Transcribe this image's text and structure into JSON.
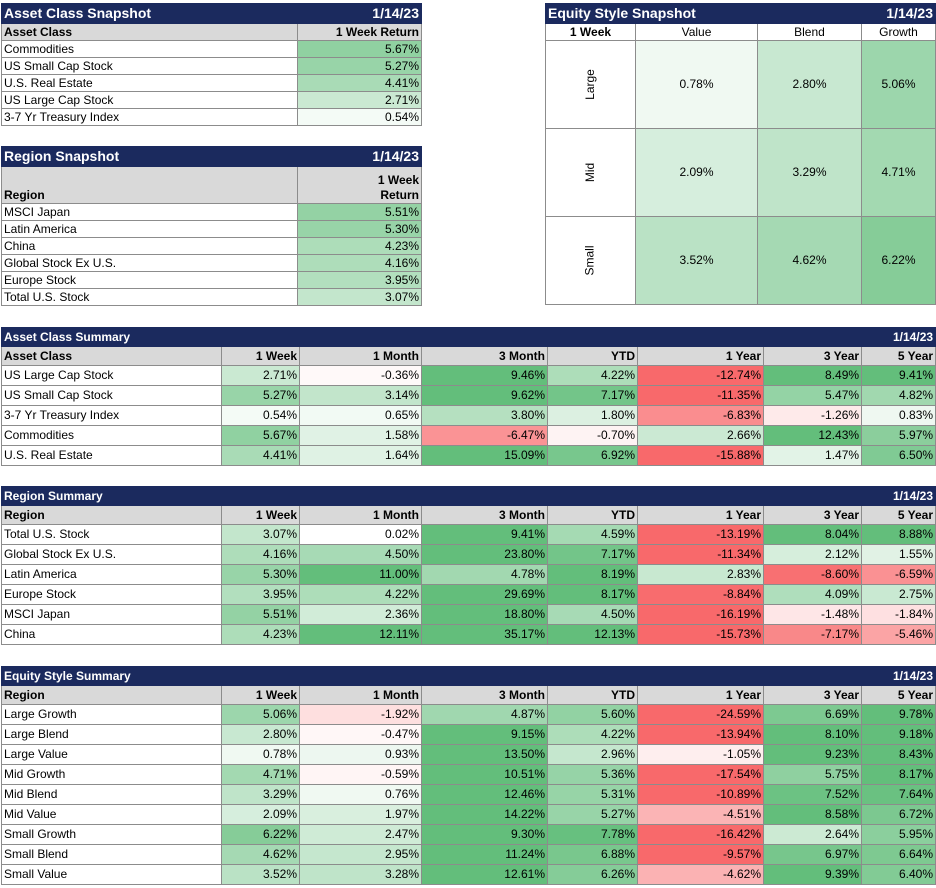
{
  "colors": {
    "title_bg": "#1b2a5e",
    "header_bg": "#d9d9d9",
    "pos_scale": "green",
    "neg_scale": "red"
  },
  "asset_snapshot": {
    "title": "Asset Class Snapshot",
    "date": "1/14/23",
    "col1": "Asset Class",
    "col2": "1 Week Return",
    "rows": [
      [
        "Commodities",
        "5.67%"
      ],
      [
        "US Small Cap Stock",
        "5.27%"
      ],
      [
        "U.S. Real Estate",
        "4.41%"
      ],
      [
        "US Large Cap Stock",
        "2.71%"
      ],
      [
        "3-7 Yr Treasury Index",
        "0.54%"
      ]
    ]
  },
  "region_snapshot": {
    "title": "Region Snapshot",
    "date": "1/14/23",
    "col1": "Region",
    "col2_line1": "1 Week",
    "col2_line2": "Return",
    "rows": [
      [
        "MSCI Japan",
        "5.51%"
      ],
      [
        "Latin America",
        "5.30%"
      ],
      [
        "China",
        "4.23%"
      ],
      [
        "Global Stock Ex U.S.",
        "4.16%"
      ],
      [
        "Europe Stock",
        "3.95%"
      ],
      [
        "Total U.S. Stock",
        "3.07%"
      ]
    ]
  },
  "style_snapshot": {
    "title": "Equity Style Snapshot",
    "date": "1/14/23",
    "corner": "1 Week",
    "cols": [
      "Value",
      "Blend",
      "Growth"
    ],
    "rows": [
      {
        "label": "Large",
        "vals": [
          "0.78%",
          "2.80%",
          "5.06%"
        ]
      },
      {
        "label": "Mid",
        "vals": [
          "2.09%",
          "3.29%",
          "4.71%"
        ]
      },
      {
        "label": "Small",
        "vals": [
          "3.52%",
          "4.62%",
          "6.22%"
        ]
      }
    ]
  },
  "asset_summary": {
    "title": "Asset Class Summary",
    "date": "1/14/23",
    "headers": [
      "Asset Class",
      "1 Week",
      "1 Month",
      "3 Month",
      "YTD",
      "1 Year",
      "3 Year",
      "5 Year"
    ],
    "rows": [
      [
        "US Large Cap Stock",
        "2.71%",
        "-0.36%",
        "9.46%",
        "4.22%",
        "-12.74%",
        "8.49%",
        "9.41%"
      ],
      [
        "US Small Cap Stock",
        "5.27%",
        "3.14%",
        "9.62%",
        "7.17%",
        "-11.35%",
        "5.47%",
        "4.82%"
      ],
      [
        "3-7 Yr Treasury Index",
        "0.54%",
        "0.65%",
        "3.80%",
        "1.80%",
        "-6.83%",
        "-1.26%",
        "0.83%"
      ],
      [
        "Commodities",
        "5.67%",
        "1.58%",
        "-6.47%",
        "-0.70%",
        "2.66%",
        "12.43%",
        "5.97%"
      ],
      [
        "U.S. Real Estate",
        "4.41%",
        "1.64%",
        "15.09%",
        "6.92%",
        "-15.88%",
        "1.47%",
        "6.50%"
      ]
    ]
  },
  "region_summary": {
    "title": "Region Summary",
    "date": "1/14/23",
    "headers": [
      "Region",
      "1 Week",
      "1 Month",
      "3 Month",
      "YTD",
      "1 Year",
      "3 Year",
      "5 Year"
    ],
    "rows": [
      [
        "Total U.S. Stock",
        "3.07%",
        "0.02%",
        "9.41%",
        "4.59%",
        "-13.19%",
        "8.04%",
        "8.88%"
      ],
      [
        "Global Stock Ex U.S.",
        "4.16%",
        "4.50%",
        "23.80%",
        "7.17%",
        "-11.34%",
        "2.12%",
        "1.55%"
      ],
      [
        "Latin America",
        "5.30%",
        "11.00%",
        "4.78%",
        "8.19%",
        "2.83%",
        "-8.60%",
        "-6.59%"
      ],
      [
        "Europe Stock",
        "3.95%",
        "4.22%",
        "29.69%",
        "8.17%",
        "-8.84%",
        "4.09%",
        "2.75%"
      ],
      [
        "MSCI Japan",
        "5.51%",
        "2.36%",
        "18.80%",
        "4.50%",
        "-16.19%",
        "-1.48%",
        "-1.84%"
      ],
      [
        "China",
        "4.23%",
        "12.11%",
        "35.17%",
        "12.13%",
        "-15.73%",
        "-7.17%",
        "-5.46%"
      ]
    ]
  },
  "style_summary": {
    "title": "Equity Style Summary",
    "date": "1/14/23",
    "headers": [
      "Region",
      "1 Week",
      "1 Month",
      "3 Month",
      "YTD",
      "1 Year",
      "3 Year",
      "5 Year"
    ],
    "rows": [
      [
        "Large Growth",
        "5.06%",
        "-1.92%",
        "4.87%",
        "5.60%",
        "-24.59%",
        "6.69%",
        "9.78%"
      ],
      [
        "Large Blend",
        "2.80%",
        "-0.47%",
        "9.15%",
        "4.22%",
        "-13.94%",
        "8.10%",
        "9.18%"
      ],
      [
        "Large Value",
        "0.78%",
        "0.93%",
        "13.50%",
        "2.96%",
        "-1.05%",
        "9.23%",
        "8.43%"
      ],
      [
        "Mid Growth",
        "4.71%",
        "-0.59%",
        "10.51%",
        "5.36%",
        "-17.54%",
        "5.75%",
        "8.17%"
      ],
      [
        "Mid Blend",
        "3.29%",
        "0.76%",
        "12.46%",
        "5.31%",
        "-10.89%",
        "7.52%",
        "7.64%"
      ],
      [
        "Mid Value",
        "2.09%",
        "1.97%",
        "14.22%",
        "5.27%",
        "-4.51%",
        "8.58%",
        "6.72%"
      ],
      [
        "Small Growth",
        "6.22%",
        "2.47%",
        "9.30%",
        "7.78%",
        "-16.42%",
        "2.64%",
        "5.95%"
      ],
      [
        "Small Blend",
        "4.62%",
        "2.95%",
        "11.24%",
        "6.88%",
        "-9.57%",
        "6.97%",
        "6.64%"
      ],
      [
        "Small Value",
        "3.52%",
        "3.28%",
        "12.61%",
        "6.26%",
        "-4.62%",
        "9.39%",
        "6.40%"
      ]
    ]
  }
}
